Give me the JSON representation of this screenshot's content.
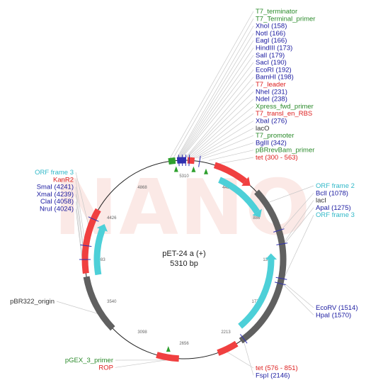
{
  "map": {
    "name": "pET-24 a (+)",
    "size_label": "5310 bp",
    "total_bp": 5310,
    "watermark": "NANO",
    "colors": {
      "feature_red": "#f04040",
      "feature_cyan": "#4dd0d8",
      "feature_gray": "#606060",
      "feature_green": "#2ea02e",
      "feature_blue": "#3030b0",
      "label_blue": "#1a1aa0",
      "label_red": "#dd2020",
      "label_green": "#2a8a2a",
      "label_cyan": "#30b8c8"
    },
    "ticks": [
      "443",
      "886",
      "1328",
      "1771",
      "2213",
      "2656",
      "3098",
      "3540",
      "3983",
      "4426",
      "4868",
      "5310"
    ],
    "top_labels": [
      {
        "text": "T7_terminator",
        "color": "green"
      },
      {
        "text": "T7_Terminal_primer",
        "color": "green"
      },
      {
        "text": "XhoI (158)",
        "color": "blue"
      },
      {
        "text": "NotI (166)",
        "color": "blue"
      },
      {
        "text": "EagI (166)",
        "color": "blue"
      },
      {
        "text": "HindIII (173)",
        "color": "blue"
      },
      {
        "text": "SalI (179)",
        "color": "blue"
      },
      {
        "text": "SacI (190)",
        "color": "blue"
      },
      {
        "text": "EcoRI (192)",
        "color": "blue"
      },
      {
        "text": "BamHI (198)",
        "color": "blue"
      },
      {
        "text": "T7_leader",
        "color": "red"
      },
      {
        "text": "NheI (231)",
        "color": "blue"
      },
      {
        "text": "NdeI (238)",
        "color": "blue"
      },
      {
        "text": "Xpress_fwd_primer",
        "color": "green"
      },
      {
        "text": "T7_transl_en_RBS",
        "color": "red"
      },
      {
        "text": "XbaI (276)",
        "color": "blue"
      },
      {
        "text": "lacO",
        "color": "gray"
      },
      {
        "text": "T7_promoter",
        "color": "green"
      },
      {
        "text": "BglII (342)",
        "color": "blue"
      },
      {
        "text": "pBRrevBam_primer",
        "color": "green"
      },
      {
        "text": "tet (300 - 563)",
        "color": "red"
      }
    ],
    "left_labels": [
      {
        "text": "ORF frame 3",
        "color": "cyan"
      },
      {
        "text": "KanR2",
        "color": "red"
      },
      {
        "text": "SmaI (4241)",
        "color": "blue"
      },
      {
        "text": "XmaI (4239)",
        "color": "blue"
      },
      {
        "text": "ClaI (4058)",
        "color": "blue"
      },
      {
        "text": "NruI (4024)",
        "color": "blue"
      }
    ],
    "right_labels": [
      {
        "text": "ORF frame 2",
        "color": "cyan"
      },
      {
        "text": "BclI (1078)",
        "color": "blue"
      },
      {
        "text": "lacI",
        "color": "gray"
      },
      {
        "text": "ApaI (1275)",
        "color": "blue"
      },
      {
        "text": "ORF frame 3",
        "color": "cyan"
      }
    ],
    "right_lower_labels": [
      {
        "text": "EcoRV (1514)",
        "color": "blue"
      },
      {
        "text": "HpaI (1570)",
        "color": "blue"
      }
    ],
    "bottom_labels": [
      {
        "text": "tet (576 - 851)",
        "color": "red"
      },
      {
        "text": "FspI (2146)",
        "color": "blue"
      }
    ],
    "bottom_left_labels": [
      {
        "text": "pGEX_3_primer",
        "color": "green"
      },
      {
        "text": "ROP",
        "color": "red"
      }
    ],
    "left_single_label": {
      "text": "pBR322_origin",
      "color": "gray"
    }
  }
}
